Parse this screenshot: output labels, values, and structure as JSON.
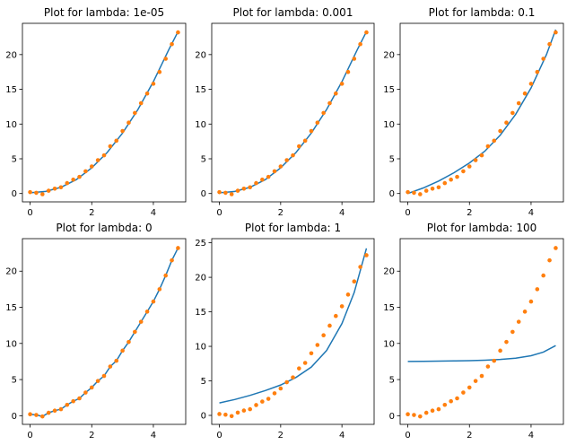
{
  "colors": {
    "fit_line": "#1f77b4",
    "data_points": "#ff7f0e"
  },
  "chart_data": [
    {
      "type": "line",
      "title": "Plot for lambda: 1e-05",
      "xlim": [
        -0.25,
        5.05
      ],
      "ylim": [
        -1.2,
        24.5
      ],
      "xticks": [
        0,
        2,
        4
      ],
      "yticks": [
        0,
        5,
        10,
        15,
        20
      ],
      "series": [
        {
          "kind": "line",
          "color": "#1f77b4",
          "x": [
            0,
            0.5,
            1,
            1.5,
            2,
            2.5,
            3,
            3.5,
            4,
            4.5,
            4.8
          ],
          "y": [
            0.1,
            0.3,
            0.9,
            2.0,
            3.7,
            5.9,
            8.7,
            12.1,
            16.1,
            20.7,
            23.3
          ]
        },
        {
          "kind": "scatter",
          "color": "#ff7f0e",
          "x": [
            0,
            0.2,
            0.4,
            0.6,
            0.8,
            1.0,
            1.2,
            1.4,
            1.6,
            1.8,
            2.0,
            2.2,
            2.4,
            2.6,
            2.8,
            3.0,
            3.2,
            3.4,
            3.6,
            3.8,
            4.0,
            4.2,
            4.4,
            4.6,
            4.8
          ],
          "y": [
            0.2,
            0.1,
            -0.1,
            0.4,
            0.7,
            0.9,
            1.5,
            2.0,
            2.4,
            3.2,
            3.9,
            4.8,
            5.5,
            6.8,
            7.6,
            9.0,
            10.2,
            11.6,
            13.0,
            14.4,
            15.8,
            17.5,
            19.4,
            21.5,
            23.2
          ]
        }
      ]
    },
    {
      "type": "line",
      "title": "Plot for lambda: 0.001",
      "xlim": [
        -0.25,
        5.05
      ],
      "ylim": [
        -1.2,
        24.5
      ],
      "xticks": [
        0,
        2,
        4
      ],
      "yticks": [
        0,
        5,
        10,
        15,
        20
      ],
      "series": [
        {
          "kind": "line",
          "color": "#1f77b4",
          "x": [
            0,
            0.5,
            1,
            1.5,
            2,
            2.5,
            3,
            3.5,
            4,
            4.5,
            4.8
          ],
          "y": [
            0.1,
            0.3,
            0.9,
            2.0,
            3.7,
            5.9,
            8.7,
            12.1,
            16.1,
            20.7,
            23.3
          ]
        },
        {
          "kind": "scatter",
          "color": "#ff7f0e",
          "x": [
            0,
            0.2,
            0.4,
            0.6,
            0.8,
            1.0,
            1.2,
            1.4,
            1.6,
            1.8,
            2.0,
            2.2,
            2.4,
            2.6,
            2.8,
            3.0,
            3.2,
            3.4,
            3.6,
            3.8,
            4.0,
            4.2,
            4.4,
            4.6,
            4.8
          ],
          "y": [
            0.2,
            0.1,
            -0.1,
            0.4,
            0.7,
            0.9,
            1.5,
            2.0,
            2.4,
            3.2,
            3.9,
            4.8,
            5.5,
            6.8,
            7.6,
            9.0,
            10.2,
            11.6,
            13.0,
            14.4,
            15.8,
            17.5,
            19.4,
            21.5,
            23.2
          ]
        }
      ]
    },
    {
      "type": "line",
      "title": "Plot for lambda: 0.1",
      "xlim": [
        -0.25,
        5.05
      ],
      "ylim": [
        -1.2,
        24.5
      ],
      "xticks": [
        0,
        2,
        4
      ],
      "yticks": [
        0,
        5,
        10,
        15,
        20
      ],
      "series": [
        {
          "kind": "line",
          "color": "#1f77b4",
          "x": [
            0,
            0.5,
            1,
            1.5,
            2,
            2.5,
            3,
            3.5,
            4,
            4.5,
            4.8
          ],
          "y": [
            0.0,
            0.8,
            1.8,
            3.0,
            4.4,
            6.1,
            8.4,
            11.4,
            15.2,
            20.0,
            23.6
          ]
        },
        {
          "kind": "scatter",
          "color": "#ff7f0e",
          "x": [
            0,
            0.2,
            0.4,
            0.6,
            0.8,
            1.0,
            1.2,
            1.4,
            1.6,
            1.8,
            2.0,
            2.2,
            2.4,
            2.6,
            2.8,
            3.0,
            3.2,
            3.4,
            3.6,
            3.8,
            4.0,
            4.2,
            4.4,
            4.6,
            4.8
          ],
          "y": [
            0.2,
            0.1,
            -0.1,
            0.4,
            0.7,
            0.9,
            1.5,
            2.0,
            2.4,
            3.2,
            3.9,
            4.8,
            5.5,
            6.8,
            7.6,
            9.0,
            10.2,
            11.6,
            13.0,
            14.4,
            15.8,
            17.5,
            19.4,
            21.5,
            23.2
          ]
        }
      ]
    },
    {
      "type": "line",
      "title": "Plot for lambda: 0",
      "xlim": [
        -0.25,
        5.05
      ],
      "ylim": [
        -1.2,
        24.5
      ],
      "xticks": [
        0,
        2,
        4
      ],
      "yticks": [
        0,
        5,
        10,
        15,
        20
      ],
      "series": [
        {
          "kind": "line",
          "color": "#1f77b4",
          "x": [
            0,
            0.2,
            0.4,
            0.6,
            0.8,
            1.0,
            1.2,
            1.4,
            1.6,
            1.8,
            2.0,
            2.2,
            2.4,
            2.6,
            2.8,
            3.0,
            3.2,
            3.4,
            3.6,
            3.8,
            4.0,
            4.2,
            4.4,
            4.6,
            4.8
          ],
          "y": [
            0.2,
            0.1,
            -0.1,
            0.4,
            0.7,
            0.9,
            1.5,
            2.0,
            2.4,
            3.2,
            3.9,
            4.8,
            5.5,
            6.8,
            7.6,
            9.0,
            10.2,
            11.6,
            13.0,
            14.4,
            15.8,
            17.5,
            19.4,
            21.5,
            23.2
          ]
        },
        {
          "kind": "scatter",
          "color": "#ff7f0e",
          "x": [
            0,
            0.2,
            0.4,
            0.6,
            0.8,
            1.0,
            1.2,
            1.4,
            1.6,
            1.8,
            2.0,
            2.2,
            2.4,
            2.6,
            2.8,
            3.0,
            3.2,
            3.4,
            3.6,
            3.8,
            4.0,
            4.2,
            4.4,
            4.6,
            4.8
          ],
          "y": [
            0.2,
            0.1,
            -0.1,
            0.4,
            0.7,
            0.9,
            1.5,
            2.0,
            2.4,
            3.2,
            3.9,
            4.8,
            5.5,
            6.8,
            7.6,
            9.0,
            10.2,
            11.6,
            13.0,
            14.4,
            15.8,
            17.5,
            19.4,
            21.5,
            23.2
          ]
        }
      ]
    },
    {
      "type": "line",
      "title": "Plot for lambda: 1",
      "xlim": [
        -0.25,
        5.05
      ],
      "ylim": [
        -1.3,
        25.6
      ],
      "xticks": [
        0,
        2,
        4
      ],
      "yticks": [
        0,
        5,
        10,
        15,
        20,
        25
      ],
      "series": [
        {
          "kind": "line",
          "color": "#1f77b4",
          "x": [
            0,
            0.5,
            1,
            1.5,
            2,
            2.5,
            3,
            3.5,
            4,
            4.4,
            4.8
          ],
          "y": [
            1.8,
            2.3,
            2.9,
            3.6,
            4.4,
            5.5,
            7.0,
            9.4,
            13.3,
            17.8,
            24.2
          ]
        },
        {
          "kind": "scatter",
          "color": "#ff7f0e",
          "x": [
            0,
            0.2,
            0.4,
            0.6,
            0.8,
            1.0,
            1.2,
            1.4,
            1.6,
            1.8,
            2.0,
            2.2,
            2.4,
            2.6,
            2.8,
            3.0,
            3.2,
            3.4,
            3.6,
            3.8,
            4.0,
            4.2,
            4.4,
            4.6,
            4.8
          ],
          "y": [
            0.2,
            0.1,
            -0.1,
            0.4,
            0.7,
            0.9,
            1.5,
            2.0,
            2.4,
            3.2,
            3.9,
            4.8,
            5.5,
            6.8,
            7.6,
            9.0,
            10.2,
            11.6,
            13.0,
            14.4,
            15.8,
            17.5,
            19.4,
            21.5,
            23.2
          ]
        }
      ]
    },
    {
      "type": "line",
      "title": "Plot for lambda: 100",
      "xlim": [
        -0.25,
        5.05
      ],
      "ylim": [
        -1.2,
        24.5
      ],
      "xticks": [
        0,
        2,
        4
      ],
      "yticks": [
        0,
        5,
        10,
        15,
        20
      ],
      "series": [
        {
          "kind": "line",
          "color": "#1f77b4",
          "x": [
            0,
            0.5,
            1,
            1.5,
            2,
            2.5,
            3,
            3.5,
            4,
            4.4,
            4.8
          ],
          "y": [
            7.5,
            7.52,
            7.55,
            7.58,
            7.62,
            7.68,
            7.78,
            7.95,
            8.3,
            8.8,
            9.7
          ]
        },
        {
          "kind": "scatter",
          "color": "#ff7f0e",
          "x": [
            0,
            0.2,
            0.4,
            0.6,
            0.8,
            1.0,
            1.2,
            1.4,
            1.6,
            1.8,
            2.0,
            2.2,
            2.4,
            2.6,
            2.8,
            3.0,
            3.2,
            3.4,
            3.6,
            3.8,
            4.0,
            4.2,
            4.4,
            4.6,
            4.8
          ],
          "y": [
            0.2,
            0.1,
            -0.1,
            0.4,
            0.7,
            0.9,
            1.5,
            2.0,
            2.4,
            3.2,
            3.9,
            4.8,
            5.5,
            6.8,
            7.6,
            9.0,
            10.2,
            11.6,
            13.0,
            14.4,
            15.8,
            17.5,
            19.4,
            21.5,
            23.2
          ]
        }
      ]
    }
  ]
}
